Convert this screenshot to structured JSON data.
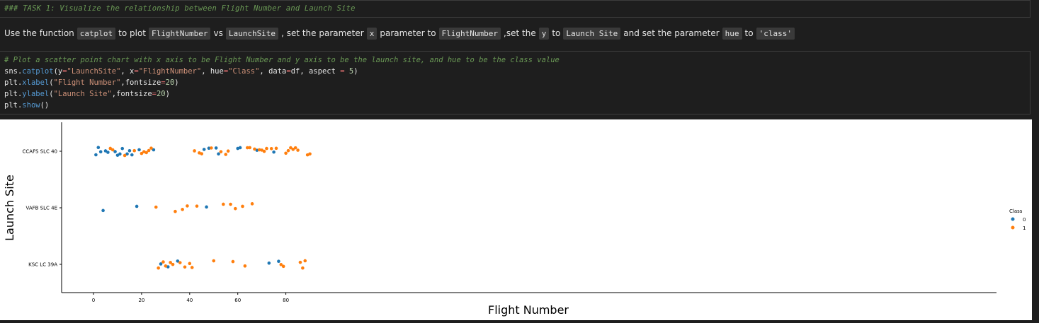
{
  "markdown_cell": {
    "text": "### TASK 1: Visualize the relationship between Flight Number and Launch Site"
  },
  "instruction": {
    "p1": "Use the function",
    "c1": "catplot",
    "p2": "to plot",
    "c2": "FlightNumber",
    "p3": "vs",
    "c3": "LaunchSite",
    "p4": ", set the parameter",
    "c4": "x",
    "p5": "parameter to",
    "c5": "FlightNumber",
    "p6": ",set the",
    "c6": "y",
    "p7": "to",
    "c7": "Launch Site",
    "p8": "and set the parameter",
    "c8": "hue",
    "p9": "to",
    "c9": "'class'"
  },
  "code_cell": {
    "comment": "# Plot a scatter point chart with x axis to be Flight Number and y axis to be the launch site, and hue to be the class value",
    "line1": "sns.catplot(y=\"LaunchSite\", x=\"FlightNumber\", hue=\"Class\", data=df, aspect = 5)",
    "line2": "plt.xlabel(\"Flight Number\",fontsize=20)",
    "line3": "plt.ylabel(\"Launch Site\",fontsize=20)",
    "line4": "plt.show()"
  },
  "colors": {
    "class0": "#1f77b4",
    "class1": "#ff7f0e"
  },
  "chart_data": {
    "type": "scatter",
    "xlabel": "Flight Number",
    "ylabel": "Launch Site",
    "categories": [
      "CCAFS SLC 40",
      "VAFB SLC 4E",
      "KSC LC 39A"
    ],
    "xlim": [
      -3,
      94
    ],
    "xticks": [
      0,
      20,
      40,
      60,
      80
    ],
    "legend": {
      "title": "Class",
      "labels": [
        "0",
        "1"
      ],
      "placement": "right"
    },
    "series": [
      {
        "name": "0",
        "points": [
          [
            1,
            "CCAFS SLC 40"
          ],
          [
            2,
            "CCAFS SLC 40"
          ],
          [
            3,
            "CCAFS SLC 40"
          ],
          [
            5,
            "CCAFS SLC 40"
          ],
          [
            6,
            "CCAFS SLC 40"
          ],
          [
            9,
            "CCAFS SLC 40"
          ],
          [
            10,
            "CCAFS SLC 40"
          ],
          [
            11,
            "CCAFS SLC 40"
          ],
          [
            12,
            "CCAFS SLC 40"
          ],
          [
            14,
            "CCAFS SLC 40"
          ],
          [
            15,
            "CCAFS SLC 40"
          ],
          [
            16,
            "CCAFS SLC 40"
          ],
          [
            19,
            "CCAFS SLC 40"
          ],
          [
            25,
            "CCAFS SLC 40"
          ],
          [
            46,
            "CCAFS SLC 40"
          ],
          [
            48,
            "CCAFS SLC 40"
          ],
          [
            51,
            "CCAFS SLC 40"
          ],
          [
            52,
            "CCAFS SLC 40"
          ],
          [
            60,
            "CCAFS SLC 40"
          ],
          [
            61,
            "CCAFS SLC 40"
          ],
          [
            68,
            "CCAFS SLC 40"
          ],
          [
            75,
            "CCAFS SLC 40"
          ],
          [
            4,
            "VAFB SLC 4E"
          ],
          [
            18,
            "VAFB SLC 4E"
          ],
          [
            47,
            "VAFB SLC 4E"
          ],
          [
            28,
            "KSC LC 39A"
          ],
          [
            31,
            "KSC LC 39A"
          ],
          [
            35,
            "KSC LC 39A"
          ],
          [
            73,
            "KSC LC 39A"
          ],
          [
            77,
            "KSC LC 39A"
          ]
        ]
      },
      {
        "name": "1",
        "points": [
          [
            7,
            "CCAFS SLC 40"
          ],
          [
            8,
            "CCAFS SLC 40"
          ],
          [
            13,
            "CCAFS SLC 40"
          ],
          [
            17,
            "CCAFS SLC 40"
          ],
          [
            20,
            "CCAFS SLC 40"
          ],
          [
            21,
            "CCAFS SLC 40"
          ],
          [
            22,
            "CCAFS SLC 40"
          ],
          [
            23,
            "CCAFS SLC 40"
          ],
          [
            24,
            "CCAFS SLC 40"
          ],
          [
            42,
            "CCAFS SLC 40"
          ],
          [
            44,
            "CCAFS SLC 40"
          ],
          [
            45,
            "CCAFS SLC 40"
          ],
          [
            49,
            "CCAFS SLC 40"
          ],
          [
            53,
            "CCAFS SLC 40"
          ],
          [
            55,
            "CCAFS SLC 40"
          ],
          [
            56,
            "CCAFS SLC 40"
          ],
          [
            64,
            "CCAFS SLC 40"
          ],
          [
            65,
            "CCAFS SLC 40"
          ],
          [
            67,
            "CCAFS SLC 40"
          ],
          [
            69,
            "CCAFS SLC 40"
          ],
          [
            70,
            "CCAFS SLC 40"
          ],
          [
            71,
            "CCAFS SLC 40"
          ],
          [
            72,
            "CCAFS SLC 40"
          ],
          [
            74,
            "CCAFS SLC 40"
          ],
          [
            76,
            "CCAFS SLC 40"
          ],
          [
            80,
            "CCAFS SLC 40"
          ],
          [
            81,
            "CCAFS SLC 40"
          ],
          [
            82,
            "CCAFS SLC 40"
          ],
          [
            83,
            "CCAFS SLC 40"
          ],
          [
            84,
            "CCAFS SLC 40"
          ],
          [
            85,
            "CCAFS SLC 40"
          ],
          [
            89,
            "CCAFS SLC 40"
          ],
          [
            90,
            "CCAFS SLC 40"
          ],
          [
            26,
            "VAFB SLC 4E"
          ],
          [
            34,
            "VAFB SLC 4E"
          ],
          [
            37,
            "VAFB SLC 4E"
          ],
          [
            39,
            "VAFB SLC 4E"
          ],
          [
            43,
            "VAFB SLC 4E"
          ],
          [
            54,
            "VAFB SLC 4E"
          ],
          [
            57,
            "VAFB SLC 4E"
          ],
          [
            59,
            "VAFB SLC 4E"
          ],
          [
            62,
            "VAFB SLC 4E"
          ],
          [
            66,
            "VAFB SLC 4E"
          ],
          [
            27,
            "KSC LC 39A"
          ],
          [
            29,
            "KSC LC 39A"
          ],
          [
            30,
            "KSC LC 39A"
          ],
          [
            32,
            "KSC LC 39A"
          ],
          [
            33,
            "KSC LC 39A"
          ],
          [
            36,
            "KSC LC 39A"
          ],
          [
            38,
            "KSC LC 39A"
          ],
          [
            40,
            "KSC LC 39A"
          ],
          [
            41,
            "KSC LC 39A"
          ],
          [
            50,
            "KSC LC 39A"
          ],
          [
            58,
            "KSC LC 39A"
          ],
          [
            63,
            "KSC LC 39A"
          ],
          [
            78,
            "KSC LC 39A"
          ],
          [
            79,
            "KSC LC 39A"
          ],
          [
            86,
            "KSC LC 39A"
          ],
          [
            87,
            "KSC LC 39A"
          ],
          [
            88,
            "KSC LC 39A"
          ]
        ]
      }
    ]
  }
}
